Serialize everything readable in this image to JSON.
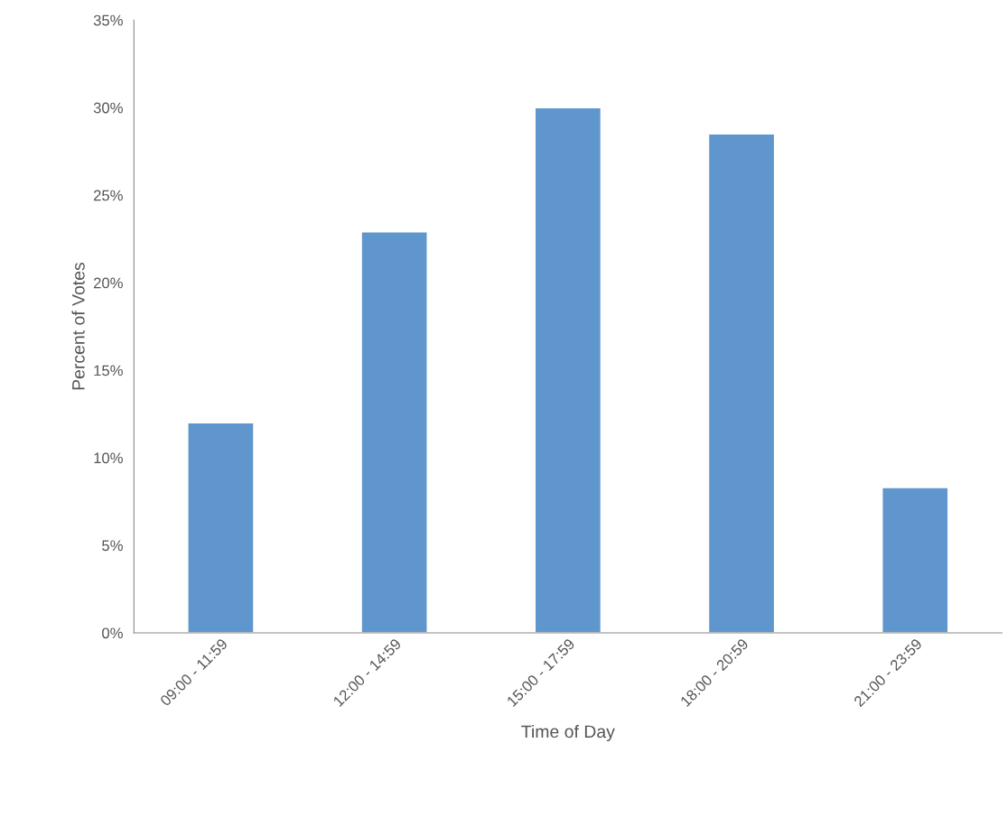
{
  "chart_data": {
    "type": "bar",
    "xlabel": "Time of Day",
    "ylabel": "Percent of Votes",
    "categories": [
      "09:00 - 11:59",
      "12:00 - 14:59",
      "15:00 - 17:59",
      "18:00 - 20:59",
      "21:00 - 23:59"
    ],
    "values": [
      12.0,
      22.9,
      30.0,
      28.5,
      8.3
    ],
    "color": "#5f96cd",
    "ylim": [
      0,
      35
    ],
    "yticks": [
      {
        "value": 0,
        "label": "0%"
      },
      {
        "value": 5,
        "label": "5%"
      },
      {
        "value": 10,
        "label": "10%"
      },
      {
        "value": 15,
        "label": "15%"
      },
      {
        "value": 20,
        "label": "20%"
      },
      {
        "value": 25,
        "label": "25%"
      },
      {
        "value": 30,
        "label": "30%"
      },
      {
        "value": 35,
        "label": "35%"
      }
    ],
    "grid": false,
    "legend": false
  }
}
